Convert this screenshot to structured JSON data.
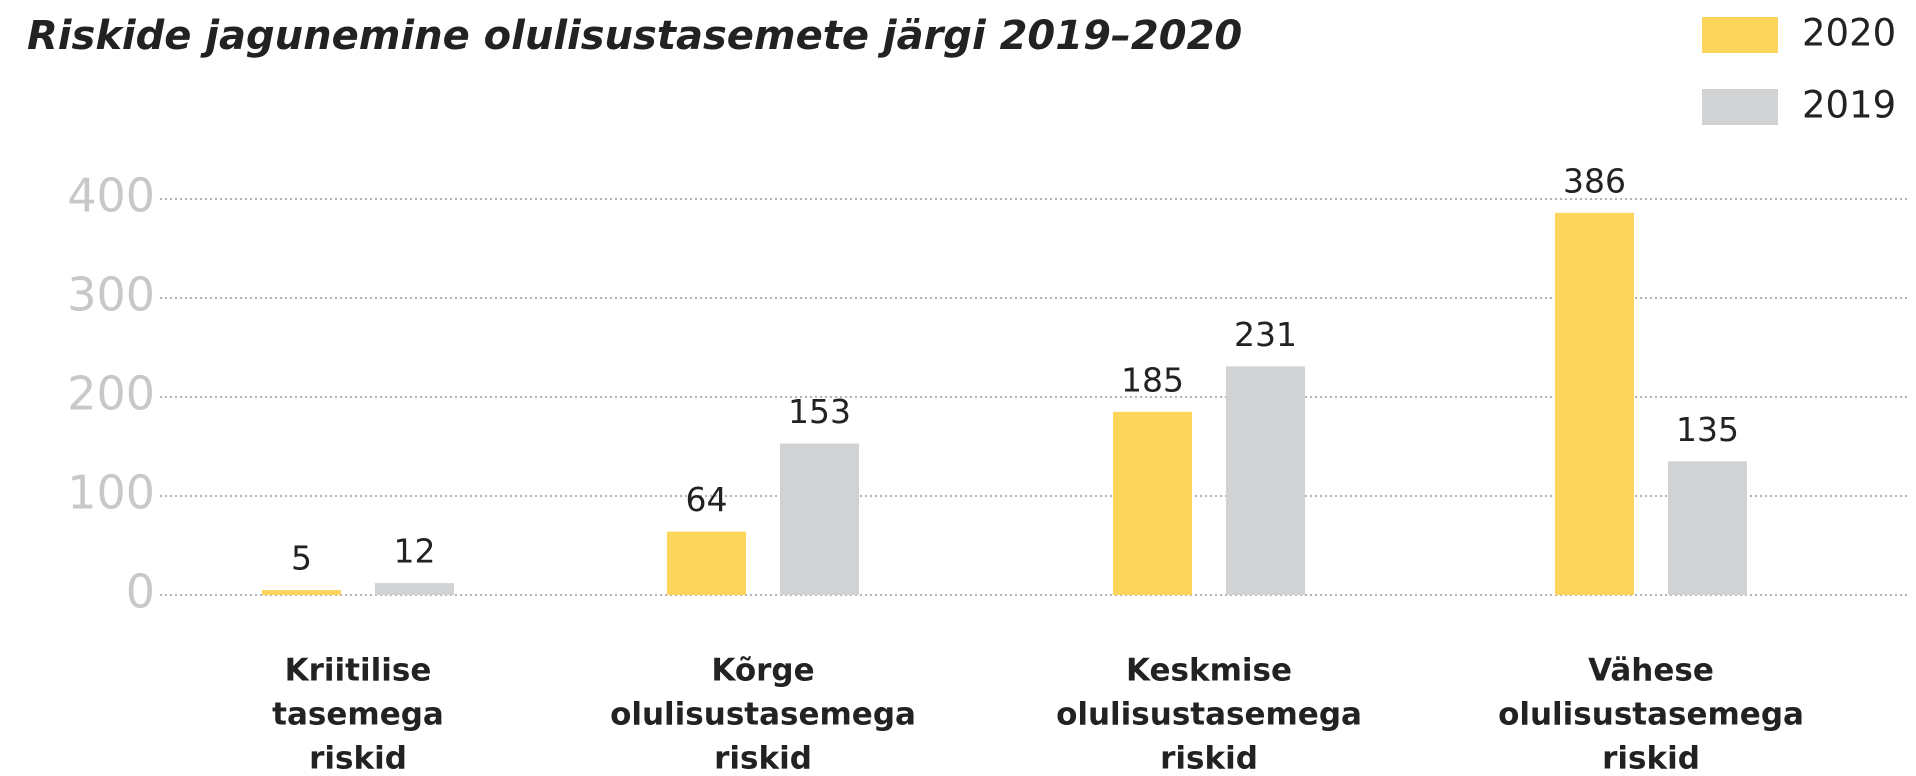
{
  "chart_data": {
    "type": "bar",
    "title": "Riskide jagunemine olulisustasemete järgi 2019–2020",
    "categories": [
      [
        "Kriitilise",
        "tasemega",
        "riskid"
      ],
      [
        "Kõrge",
        "olulisustasemega",
        "riskid"
      ],
      [
        "Keskmise",
        "olulisustasemega",
        "riskid"
      ],
      [
        "Vähese",
        "olulisustasemega",
        "riskid"
      ]
    ],
    "series": [
      {
        "name": "2020",
        "color": "#fdd55a",
        "values": [
          5,
          64,
          185,
          386
        ]
      },
      {
        "name": "2019",
        "color": "#d1d2d4",
        "values": [
          12,
          153,
          231,
          135
        ]
      }
    ],
    "ylim": [
      0,
      400
    ],
    "yticks": [
      0,
      100,
      200,
      300,
      400
    ],
    "grid": true,
    "legend": "top-right"
  }
}
